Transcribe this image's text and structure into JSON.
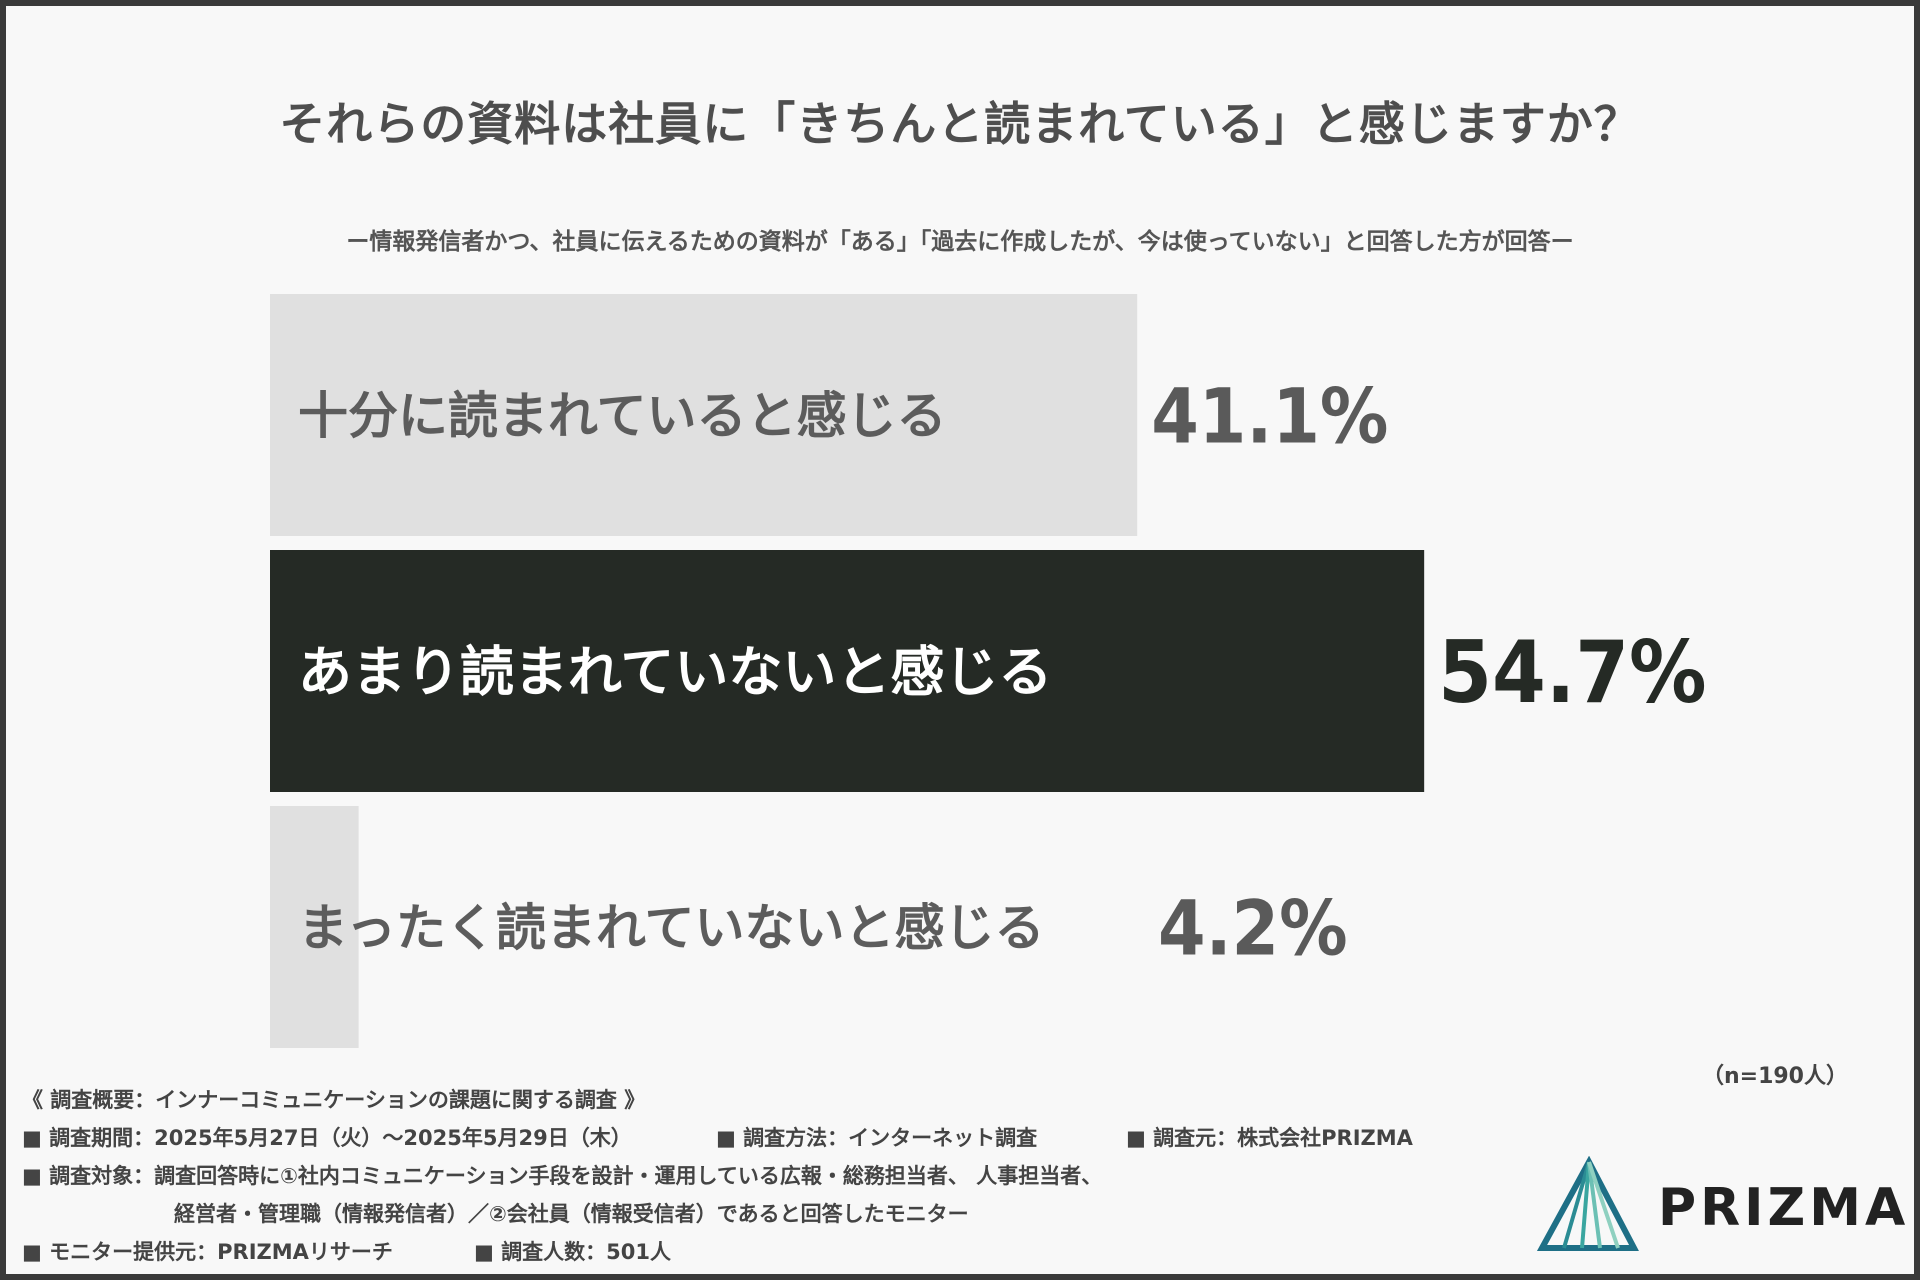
{
  "chart_data": {
    "type": "bar",
    "orientation": "horizontal",
    "title": "それらの資料は社員に「きちんと読まれている」と感じますか？",
    "subtitle": "ー情報発信者かつ、社員に伝えるための資料が「ある」「過去に作成したが、今は使っていない」と回答した方が回答ー",
    "categories": [
      "十分に読まれていると感じる",
      "あまり読まれていないと感じる",
      "まったく読まれていないと感じる"
    ],
    "values": [
      41.1,
      54.7,
      4.2
    ],
    "value_labels": [
      "41.1%",
      "54.7%",
      "4.2%"
    ],
    "xlim": [
      0,
      100
    ],
    "grid": false,
    "bar_colors": [
      "#e0e0e0",
      "#252a25",
      "#e0e0e0"
    ],
    "label_colors": [
      "#5c5c5c",
      "#ffffff",
      "#5c5c5c"
    ],
    "value_colors": [
      "#5a5a5a",
      "#252a25",
      "#5a5a5a"
    ],
    "n_note": "（n=190人）"
  },
  "footer": {
    "heading": "《 調査概要：インナーコミュニケーションの課題に関する調査 》",
    "period": "■ 調査期間：2025年5月27日（火）～2025年5月29日（木）",
    "method": "■ 調査方法：インターネット調査",
    "source": "■ 調査元：株式会社PRIZMA",
    "target_line1": "■ 調査対象：調査回答時に①社内コミュニケーション手段を設計・運用している広報・総務担当者、 人事担当者、",
    "target_line2": "経営者・管理職（情報発信者）／②会社員（情報受信者）であると回答したモニター",
    "monitor": "■ モニター提供元：PRIZMAリサーチ",
    "count": "■ 調査人数：501人"
  },
  "logo": {
    "text": "PRIZMA",
    "colors": [
      "#1e6f86",
      "#3aa6a0",
      "#8fd0c0"
    ]
  }
}
